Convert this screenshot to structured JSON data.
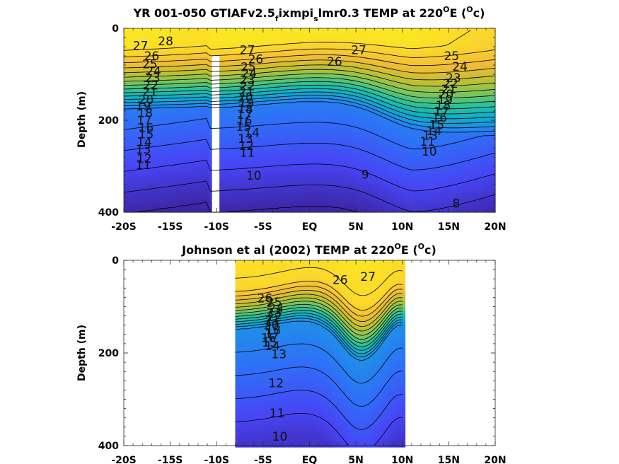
{
  "chart_data": [
    {
      "type": "heatmap",
      "subtype": "filled-contour",
      "title": "YR 001-050 GTIAFv2.5",
      "title_sub1": "f",
      "title_mid": "ixmpi",
      "title_sub2": "s",
      "title_mid2": "lmr0.3 TEMP at 220",
      "title_sup1": "O",
      "title_mid3": "E (",
      "title_sup2": "O",
      "title_end": "c)",
      "xlabel": "",
      "ylabel": "Depth (m)",
      "xlim": [
        -20,
        20
      ],
      "ylim": [
        400,
        0
      ],
      "x_ticks": [
        -20,
        -15,
        -10,
        -5,
        0,
        5,
        10,
        15,
        20
      ],
      "x_tick_labels": [
        "-20S",
        "-15S",
        "-10S",
        "-5S",
        "EQ",
        "5N",
        "10N",
        "15N",
        "20N"
      ],
      "y_ticks": [
        0,
        200,
        400
      ],
      "y_tick_labels": [
        "0",
        "200",
        "400"
      ],
      "data_x_range": [
        -20,
        20
      ],
      "gap_x_range": [
        -10.5,
        -9.7
      ],
      "contour_levels": [
        8,
        9,
        10,
        11,
        12,
        13,
        14,
        15,
        16,
        17,
        18,
        19,
        20,
        21,
        22,
        23,
        24,
        25,
        26,
        27,
        28
      ],
      "colormap": [
        "#3e26a8",
        "#4745f5",
        "#2f6ff8",
        "#1c94e6",
        "#0db0c6",
        "#2dc197",
        "#7dc55b",
        "#c2bf31",
        "#f2bd36",
        "#fbd92a",
        "#f9fb15"
      ],
      "color_range": [
        8,
        29
      ],
      "contour_labels": [
        {
          "text": "28",
          "x": -15.5,
          "y": 28
        },
        {
          "text": "27",
          "x": -18.2,
          "y": 38
        },
        {
          "text": "26",
          "x": -17.0,
          "y": 60
        },
        {
          "text": "25",
          "x": -17.2,
          "y": 78
        },
        {
          "text": "24",
          "x": -16.8,
          "y": 93
        },
        {
          "text": "23",
          "x": -16.9,
          "y": 108
        },
        {
          "text": "22",
          "x": -17.1,
          "y": 124
        },
        {
          "text": "21",
          "x": -17.2,
          "y": 138
        },
        {
          "text": "20",
          "x": -17.6,
          "y": 155
        },
        {
          "text": "19",
          "x": -17.9,
          "y": 169
        },
        {
          "text": "18",
          "x": -17.7,
          "y": 184
        },
        {
          "text": "17",
          "x": -17.8,
          "y": 200
        },
        {
          "text": "16",
          "x": -17.6,
          "y": 216
        },
        {
          "text": "15",
          "x": -17.6,
          "y": 230
        },
        {
          "text": "14",
          "x": -17.8,
          "y": 247
        },
        {
          "text": "13",
          "x": -17.9,
          "y": 263
        },
        {
          "text": "12",
          "x": -17.8,
          "y": 283
        },
        {
          "text": "11",
          "x": -17.9,
          "y": 297
        },
        {
          "text": "27",
          "x": -6.7,
          "y": 47
        },
        {
          "text": "26",
          "x": -5.8,
          "y": 67
        },
        {
          "text": "25",
          "x": -6.6,
          "y": 84
        },
        {
          "text": "24",
          "x": -6.5,
          "y": 98
        },
        {
          "text": "23",
          "x": -6.7,
          "y": 112
        },
        {
          "text": "22",
          "x": -6.7,
          "y": 125
        },
        {
          "text": "21",
          "x": -6.8,
          "y": 138
        },
        {
          "text": "20",
          "x": -6.9,
          "y": 150
        },
        {
          "text": "19",
          "x": -6.8,
          "y": 162
        },
        {
          "text": "18",
          "x": -6.9,
          "y": 175
        },
        {
          "text": "17",
          "x": -7.0,
          "y": 188
        },
        {
          "text": "16",
          "x": -7.0,
          "y": 201
        },
        {
          "text": "15",
          "x": -7.1,
          "y": 214
        },
        {
          "text": "14",
          "x": -6.2,
          "y": 227
        },
        {
          "text": "13",
          "x": -6.9,
          "y": 240
        },
        {
          "text": "12",
          "x": -6.8,
          "y": 255
        },
        {
          "text": "11",
          "x": -6.7,
          "y": 270
        },
        {
          "text": "10",
          "x": -6.0,
          "y": 320
        },
        {
          "text": "26",
          "x": 2.7,
          "y": 72
        },
        {
          "text": "27",
          "x": 5.3,
          "y": 47
        },
        {
          "text": "25",
          "x": 15.3,
          "y": 60
        },
        {
          "text": "24",
          "x": 16.2,
          "y": 83
        },
        {
          "text": "23",
          "x": 15.5,
          "y": 108
        },
        {
          "text": "22",
          "x": 15.2,
          "y": 120
        },
        {
          "text": "21",
          "x": 15.0,
          "y": 132
        },
        {
          "text": "20",
          "x": 14.7,
          "y": 143
        },
        {
          "text": "19",
          "x": 14.6,
          "y": 155
        },
        {
          "text": "18",
          "x": 14.4,
          "y": 168
        },
        {
          "text": "17",
          "x": 14.2,
          "y": 181
        },
        {
          "text": "16",
          "x": 14.0,
          "y": 194
        },
        {
          "text": "15",
          "x": 13.7,
          "y": 210
        },
        {
          "text": "14",
          "x": 13.4,
          "y": 223
        },
        {
          "text": "13",
          "x": 13.0,
          "y": 233
        },
        {
          "text": "11",
          "x": 12.7,
          "y": 246
        },
        {
          "text": "10",
          "x": 12.9,
          "y": 268
        },
        {
          "text": "9",
          "x": 6.0,
          "y": 318
        },
        {
          "text": "8",
          "x": 15.8,
          "y": 381
        }
      ]
    },
    {
      "type": "heatmap",
      "subtype": "filled-contour",
      "title": "Johnson et al (2002) TEMP at 220",
      "title_sup1": "O",
      "title_mid3": "E (",
      "title_sup2": "O",
      "title_end": "c)",
      "xlabel": "",
      "ylabel": "Depth (m)",
      "xlim": [
        -20,
        20
      ],
      "ylim": [
        400,
        0
      ],
      "x_ticks": [
        -20,
        -15,
        -10,
        -5,
        0,
        5,
        10,
        15,
        20
      ],
      "x_tick_labels": [
        "-20S",
        "-15S",
        "-10S",
        "-5S",
        "EQ",
        "5N",
        "10N",
        "15N",
        "20N"
      ],
      "y_ticks": [
        0,
        200,
        400
      ],
      "y_tick_labels": [
        "0",
        "200",
        "400"
      ],
      "data_x_range": [
        -8,
        10
      ],
      "contour_levels": [
        10,
        11,
        12,
        13,
        14,
        15,
        16,
        17,
        18,
        19,
        20,
        21,
        22,
        23,
        24,
        25,
        26,
        27
      ],
      "colormap": [
        "#3e26a8",
        "#4745f5",
        "#2f6ff8",
        "#1c94e6",
        "#0db0c6",
        "#2dc197",
        "#7dc55b",
        "#c2bf31",
        "#f2bd36",
        "#fbd92a",
        "#f9fb15"
      ],
      "color_range": [
        8,
        29
      ],
      "contour_labels": [
        {
          "text": "26",
          "x": 3.3,
          "y": 42
        },
        {
          "text": "27",
          "x": 6.3,
          "y": 35
        },
        {
          "text": "26",
          "x": -4.8,
          "y": 82
        },
        {
          "text": "25",
          "x": -3.8,
          "y": 90
        },
        {
          "text": "24",
          "x": -3.6,
          "y": 103
        },
        {
          "text": "23",
          "x": -3.8,
          "y": 112
        },
        {
          "text": "22",
          "x": -3.8,
          "y": 122
        },
        {
          "text": "21",
          "x": -4.0,
          "y": 130
        },
        {
          "text": "20",
          "x": -4.1,
          "y": 140
        },
        {
          "text": "18",
          "x": -3.9,
          "y": 150
        },
        {
          "text": "17",
          "x": -4.0,
          "y": 158
        },
        {
          "text": "16",
          "x": -4.4,
          "y": 167
        },
        {
          "text": "15",
          "x": -4.3,
          "y": 177
        },
        {
          "text": "14",
          "x": -4.0,
          "y": 185
        },
        {
          "text": "13",
          "x": -3.3,
          "y": 202
        },
        {
          "text": "12",
          "x": -3.6,
          "y": 265
        },
        {
          "text": "11",
          "x": -3.5,
          "y": 330
        },
        {
          "text": "10",
          "x": -3.2,
          "y": 380
        }
      ]
    }
  ]
}
